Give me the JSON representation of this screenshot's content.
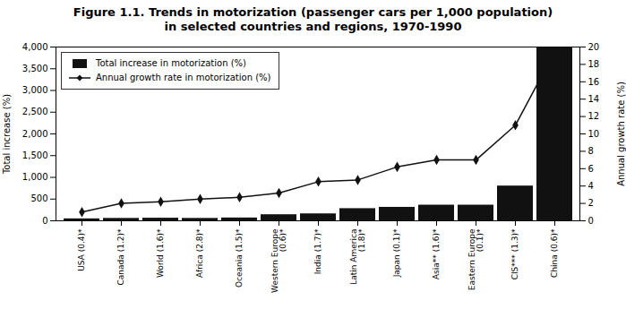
{
  "chart_data": {
    "type": "bar",
    "title": "Figure 1.1. Trends in motorization (passenger cars per 1,000 population)",
    "subtitle": "in selected countries and regions, 1970-1990",
    "categories": [
      "USA (0.4)*",
      "Canada (1.2)*",
      "World (1.6)*",
      "Africa (2.8)*",
      "Oceania (1.5)*",
      "Western Europe\n(0.6)*",
      "India (1.7)*",
      "Latin America\n(1.8)*",
      "Japan (0.1)*",
      "Asia** (1.6)*",
      "Eastern Europe\n(0.1)*",
      "CIS*** (1.3)*",
      "China (0.6)*"
    ],
    "series": [
      {
        "name": "Total increase in motorization (%)",
        "type": "bar",
        "color": "#111111",
        "values": [
          45,
          55,
          60,
          55,
          65,
          140,
          160,
          280,
          310,
          360,
          360,
          800,
          4000
        ]
      },
      {
        "name": "Annual growth rate in motorization (%)",
        "type": "line",
        "color": "#111111",
        "marker": "diamond",
        "axis": "y2",
        "values": [
          1.0,
          2.0,
          2.2,
          2.5,
          2.7,
          3.2,
          4.5,
          4.7,
          6.2,
          7.0,
          7.0,
          11.0,
          19.5
        ]
      }
    ],
    "ylabel": "Total increase (%)",
    "y2label": "Annual growth rate (%)",
    "ylim": [
      0,
      4000
    ],
    "yticks": [
      0,
      500,
      {
        "value": 1000,
        "label": "1,000"
      },
      {
        "value": 1500,
        "label": "1,500"
      },
      {
        "value": 2000,
        "label": "2,000"
      },
      {
        "value": 2500,
        "label": "2,500"
      },
      {
        "value": 3000,
        "label": "3,000"
      },
      {
        "value": 3500,
        "label": "3,500"
      },
      {
        "value": 4000,
        "label": "4,000"
      }
    ],
    "y2lim": [
      0,
      20
    ],
    "y2ticks": [
      0,
      2,
      4,
      6,
      8,
      10,
      12,
      14,
      16,
      18,
      20
    ],
    "legend": "upper left"
  }
}
